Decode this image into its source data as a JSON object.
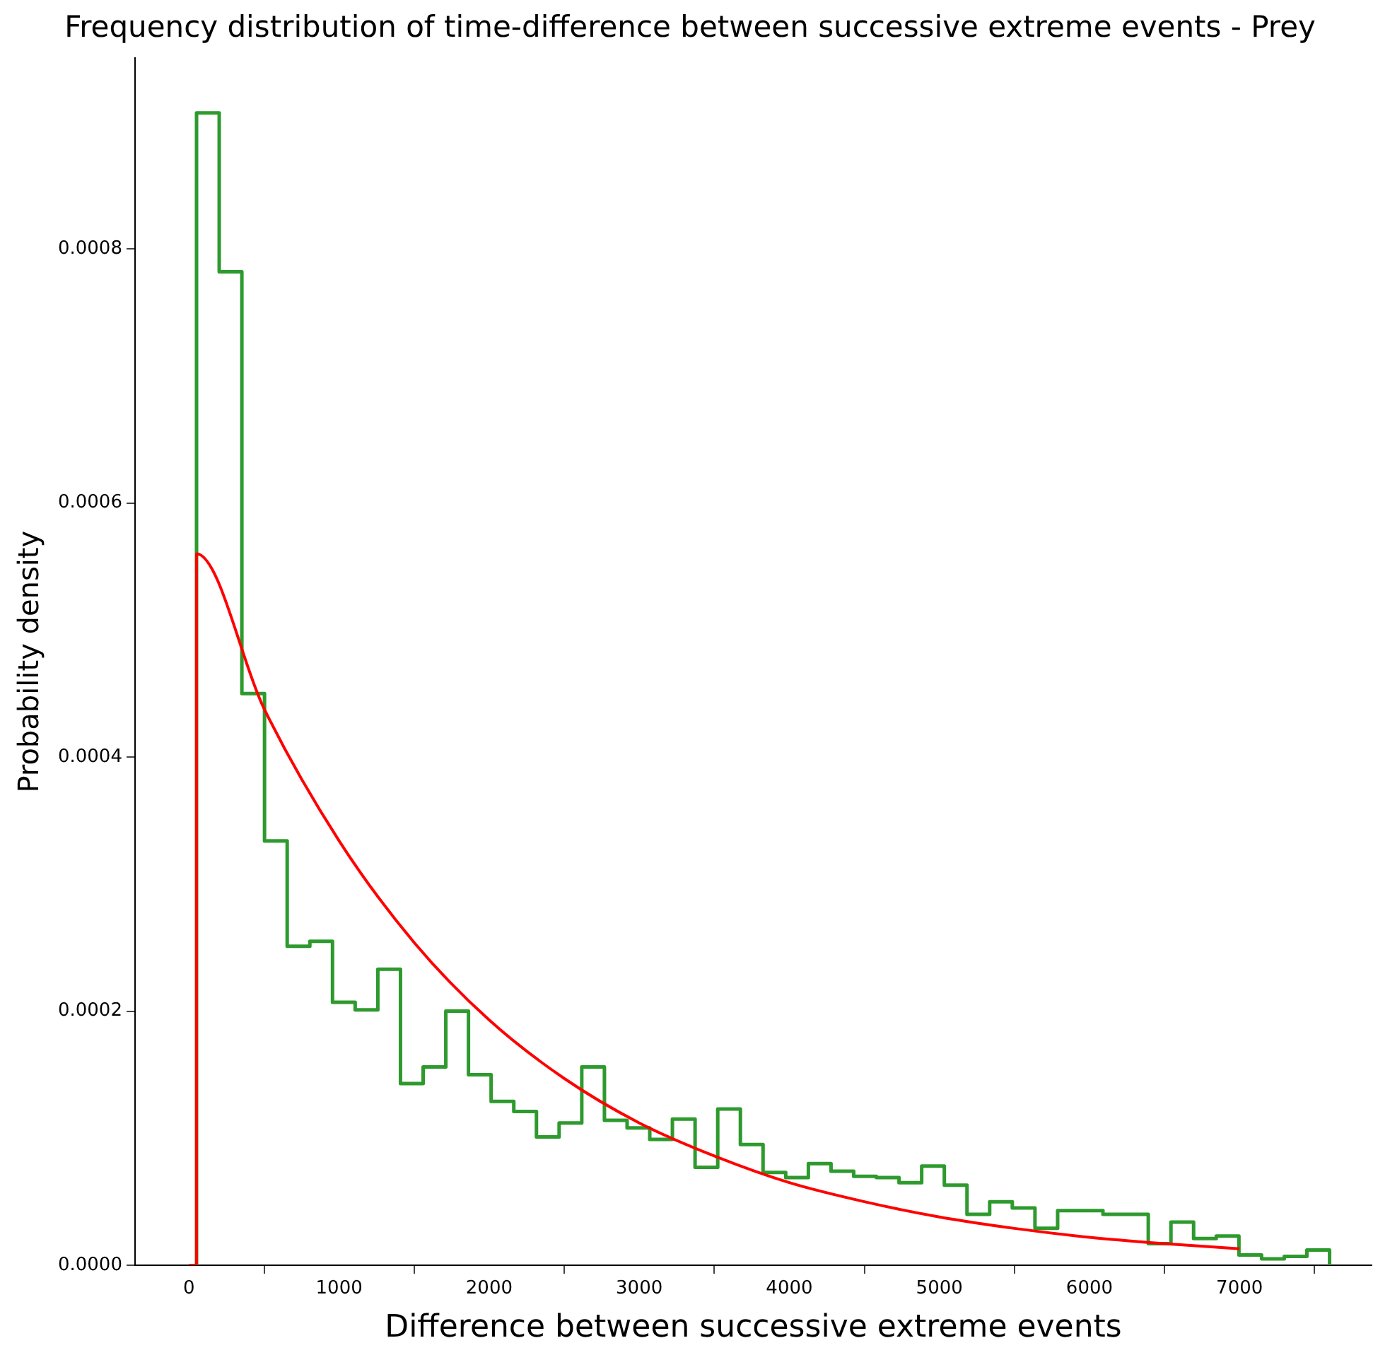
{
  "chart_data": {
    "type": "histogram",
    "title": "Frequency distribution of time-difference between successive extreme events - Prey",
    "xlabel": "Difference between successive extreme events",
    "ylabel": "Probability density",
    "xlim": [
      -360,
      7880
    ],
    "xticks": [
      0,
      1000,
      2000,
      3000,
      4000,
      5000,
      6000,
      7000
    ],
    "ylim": [
      0,
      0.00095
    ],
    "yticks": [
      {
        "value": 0,
        "label": "0.0000"
      },
      {
        "value": 0.0002,
        "label": "0.0002"
      },
      {
        "value": 0.0004,
        "label": "0.0004"
      },
      {
        "value": 0.0006,
        "label": "0.0006"
      },
      {
        "value": 0.0008,
        "label": "0.0008"
      }
    ],
    "grid": false,
    "legend": false,
    "series": [
      {
        "type": "histogram",
        "color": "#2e9a2e",
        "bins": [
          50,
          201,
          352,
          503,
          654,
          805,
          956,
          1107,
          1258,
          1409,
          1560,
          1711,
          1862,
          2013,
          2164,
          2315,
          2466,
          2617,
          2768,
          2919,
          3070,
          3221,
          3372,
          3523,
          3674,
          3825,
          3976,
          4127,
          4278,
          4429,
          4580,
          4731,
          4882,
          5033,
          5184,
          5335,
          5486,
          5637,
          5788,
          5939,
          6090,
          6241,
          6392,
          6543,
          6694,
          6845,
          6996,
          7147,
          7298,
          7449,
          7600
        ],
        "values": [
          0.000907,
          0.000782,
          0.00045,
          0.000334,
          0.000251,
          0.000255,
          0.000207,
          0.000201,
          0.000233,
          0.000143,
          0.000156,
          0.0002,
          0.00015,
          0.000129,
          0.000121,
          0.000101,
          0.000112,
          0.000156,
          0.000114,
          0.000108,
          9.9e-05,
          0.000115,
          7.7e-05,
          0.000123,
          9.5e-05,
          7.3e-05,
          6.9e-05,
          8e-05,
          7.4e-05,
          7e-05,
          6.9e-05,
          6.5e-05,
          7.8e-05,
          6.3e-05,
          4e-05,
          5e-05,
          4.5e-05,
          2.9e-05,
          4.3e-05,
          4.3e-05,
          4e-05,
          4e-05,
          1.7e-05,
          3.4e-05,
          2.1e-05,
          2.3e-05,
          8e-06,
          5e-06,
          7e-06,
          1.2e-05
        ]
      },
      {
        "type": "line",
        "color": "#ff0000",
        "x": [
          0,
          50,
          50,
          500,
          1000,
          1500,
          2000,
          2500,
          3000,
          3500,
          4000,
          4500,
          5000,
          5500,
          6000,
          6500,
          7000
        ],
        "values": [
          0,
          0,
          0.00056,
          0.000438,
          0.000334,
          0.000254,
          0.000193,
          0.000147,
          0.000112,
          8.6e-05,
          6.5e-05,
          5e-05,
          3.8e-05,
          2.9e-05,
          2.2e-05,
          1.7e-05,
          1.3e-05
        ]
      }
    ]
  }
}
